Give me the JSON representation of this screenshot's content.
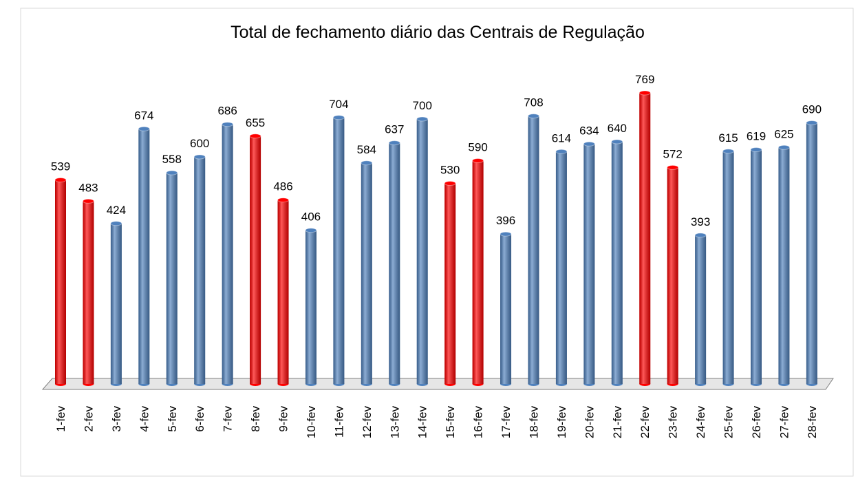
{
  "chart_data": {
    "type": "bar",
    "title": "Total de fechamento diário das Centrais de Regulação",
    "categories": [
      "1-fev",
      "2-fev",
      "3-fev",
      "4-fev",
      "5-fev",
      "6-fev",
      "7-fev",
      "8-fev",
      "9-fev",
      "10-fev",
      "11-fev",
      "12-fev",
      "13-fev",
      "14-fev",
      "15-fev",
      "16-fev",
      "17-fev",
      "18-fev",
      "19-fev",
      "20-fev",
      "21-fev",
      "22-fev",
      "23-fev",
      "24-fev",
      "25-fev",
      "26-fev",
      "27-fev",
      "28-fev"
    ],
    "values": [
      539,
      483,
      424,
      674,
      558,
      600,
      686,
      655,
      486,
      406,
      704,
      584,
      637,
      700,
      530,
      590,
      396,
      708,
      614,
      634,
      640,
      769,
      572,
      393,
      615,
      619,
      625,
      690
    ],
    "colors": [
      "#ff0000",
      "#ff0000",
      "#4f81bd",
      "#4f81bd",
      "#4f81bd",
      "#4f81bd",
      "#4f81bd",
      "#ff0000",
      "#ff0000",
      "#4f81bd",
      "#4f81bd",
      "#4f81bd",
      "#4f81bd",
      "#4f81bd",
      "#ff0000",
      "#ff0000",
      "#4f81bd",
      "#4f81bd",
      "#4f81bd",
      "#4f81bd",
      "#4f81bd",
      "#ff0000",
      "#ff0000",
      "#4f81bd",
      "#4f81bd",
      "#4f81bd",
      "#4f81bd",
      "#4f81bd"
    ],
    "ylim": [
      0,
      800
    ]
  }
}
